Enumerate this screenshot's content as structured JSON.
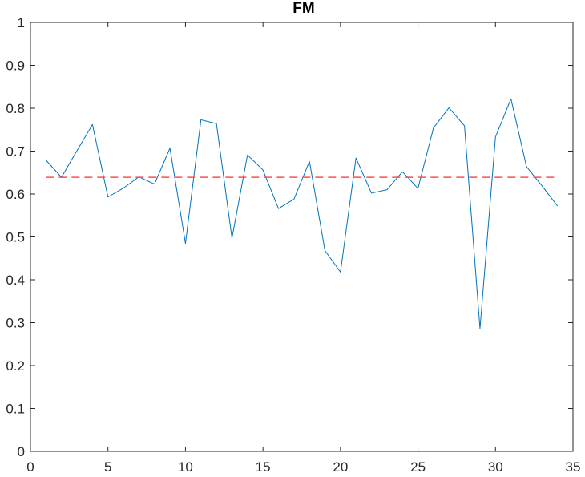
{
  "chart_data": {
    "type": "line",
    "title": "FM",
    "xlabel": "",
    "ylabel": "",
    "xlim": [
      0,
      35
    ],
    "ylim": [
      0,
      1
    ],
    "xticks": [
      0,
      5,
      10,
      15,
      20,
      25,
      30,
      35
    ],
    "yticks": [
      0,
      0.1,
      0.2,
      0.3,
      0.4,
      0.5,
      0.6,
      0.7,
      0.8,
      0.9,
      1
    ],
    "ytick_labels": [
      "0",
      "0.1",
      "0.2",
      "0.3",
      "0.4",
      "0.5",
      "0.6",
      "0.7",
      "0.8",
      "0.9",
      "1"
    ],
    "xtick_labels": [
      "0",
      "5",
      "10",
      "15",
      "20",
      "25",
      "30",
      "35"
    ],
    "grid": false,
    "series": [
      {
        "color": "#0072bd",
        "style": "solid",
        "x": [
          1,
          2,
          3,
          4,
          5,
          6,
          7,
          8,
          9,
          10,
          11,
          12,
          13,
          14,
          15,
          16,
          17,
          18,
          19,
          20,
          21,
          22,
          23,
          24,
          25,
          26,
          27,
          28,
          29,
          30,
          31,
          32,
          33,
          34
        ],
        "y": [
          0.679,
          0.639,
          0.701,
          0.762,
          0.593,
          0.614,
          0.64,
          0.623,
          0.707,
          0.485,
          0.773,
          0.764,
          0.497,
          0.691,
          0.656,
          0.566,
          0.588,
          0.676,
          0.468,
          0.418,
          0.684,
          0.602,
          0.61,
          0.652,
          0.613,
          0.754,
          0.801,
          0.759,
          0.286,
          0.733,
          0.822,
          0.664,
          0.619,
          0.572
        ]
      },
      {
        "color": "#ff4d4d",
        "style": "dashed",
        "x": [
          1,
          34
        ],
        "y": [
          0.639,
          0.639
        ]
      }
    ]
  }
}
